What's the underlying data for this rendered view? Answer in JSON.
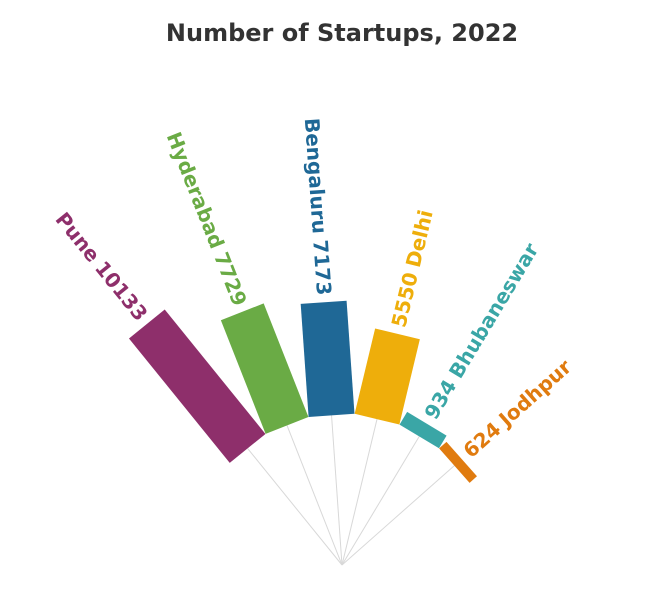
{
  "chart_data": {
    "type": "radial-bar",
    "title": "Number of Startups, 2022",
    "categories": [
      "Pune",
      "Hyderabad",
      "Bengaluru",
      "Delhi",
      "Bhubaneswar",
      "Jodhpur"
    ],
    "values": [
      10133,
      7729,
      7173,
      5550,
      934,
      624
    ],
    "colors": [
      "#8e2f6b",
      "#6aab45",
      "#1f6896",
      "#eeae0b",
      "#3aa6a6",
      "#e07b0f"
    ]
  }
}
